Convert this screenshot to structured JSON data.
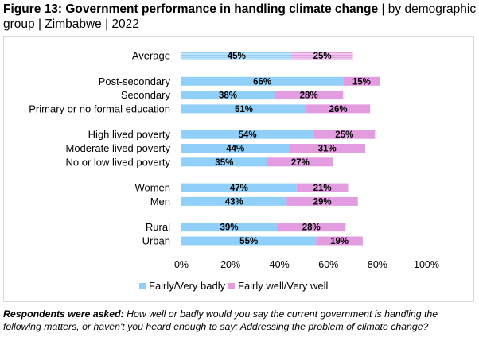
{
  "figure": {
    "title_bold": "Figure 13: Government performance in handling climate change",
    "title_rest": " | by demographic group | Zimbabwe | 2022"
  },
  "footnote": {
    "lead": "Respondents were asked:",
    "text": " How well or badly would you say the current government is handling the following matters, or haven't you heard enough to say: Addressing the problem of climate change?"
  },
  "colors": {
    "series1": "#8fcff8",
    "series2": "#e39ce0",
    "average_stripe": "#ffffff",
    "border": "#d9d9d9"
  },
  "chart_data": {
    "type": "bar",
    "orientation": "horizontal",
    "stacked": true,
    "categories": [
      "Average",
      "Post-secondary",
      "Secondary",
      "Primary or no formal education",
      "High lived poverty",
      "Moderate lived poverty",
      "No or low lived poverty",
      "Women",
      "Men",
      "Rural",
      "Urban"
    ],
    "groups": [
      [
        0
      ],
      [
        1,
        2,
        3
      ],
      [
        4,
        5,
        6
      ],
      [
        7,
        8
      ],
      [
        9,
        10
      ]
    ],
    "series": [
      {
        "name": "Fairly/Very badly",
        "values": [
          45,
          66,
          38,
          51,
          54,
          44,
          35,
          47,
          43,
          39,
          55
        ]
      },
      {
        "name": "Fairly well/Very well",
        "values": [
          25,
          15,
          28,
          26,
          25,
          31,
          27,
          21,
          29,
          28,
          19
        ]
      }
    ],
    "data_labels": [
      [
        "45%",
        "66%",
        "38%",
        "51%",
        "54%",
        "44%",
        "35%",
        "47%",
        "43%",
        "39%",
        "55%"
      ],
      [
        "25%",
        "15%",
        "28%",
        "26%",
        "25%",
        "31%",
        "27%",
        "21%",
        "29%",
        "28%",
        "19%"
      ]
    ],
    "xlim": [
      0,
      100
    ],
    "xticks": [
      0,
      20,
      40,
      60,
      80,
      100
    ],
    "xtick_labels": [
      "0%",
      "20%",
      "40%",
      "60%",
      "80%",
      "100%"
    ],
    "highlighted_category": "Average",
    "grid": false,
    "legend_position": "bottom"
  }
}
